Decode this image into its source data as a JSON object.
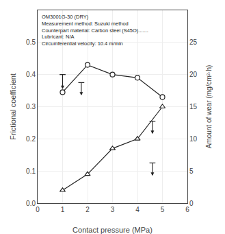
{
  "chart_data": {
    "type": "line",
    "annotation": [
      "OM3001G-30 (DRY)",
      "Measurement method: Suzuki method",
      "Counterpart material: Carbon steel (S45O).......",
      "Lubricant: N/A",
      "Circumferential velocity: 10.4 m/min"
    ],
    "x_label": "Contact pressure (MPa)",
    "y_label": "Frictional coefficient",
    "y2_label": "Amount of wear (mg/cm²·h)",
    "series": [
      {
        "x": [
          1,
          2,
          3,
          4,
          5
        ],
        "values": [
          0.345,
          0.43,
          0.4,
          0.39,
          0.33
        ],
        "color": "#222222",
        "marker": "circle"
      },
      {
        "x": [
          1,
          2,
          3,
          4,
          5
        ],
        "values": [
          2,
          4.5,
          8.5,
          10,
          15
        ],
        "color": "#222222",
        "marker": "triangle",
        "axis": "y2"
      }
    ],
    "xlim": [
      0,
      6
    ],
    "xticks": [
      0,
      1,
      2,
      3,
      4,
      5,
      6
    ],
    "ylim": [
      0,
      0.6
    ],
    "yticks": [
      {
        "value": 0,
        "label": "0.0"
      },
      0.1,
      0.2,
      0.3,
      0.4,
      0.5
    ],
    "y2lim": [
      0,
      30
    ],
    "y2ticks": [
      0,
      5,
      10,
      15,
      20,
      25
    ],
    "grid": true,
    "indicators": [
      {
        "x": 1.0,
        "y": 0.4,
        "dy": 0.045,
        "color": "#222222"
      },
      {
        "x": 1.75,
        "y": 0.375,
        "dy": 0.04,
        "color": "#222222"
      },
      {
        "x": 4.6,
        "y": 0.255,
        "dy": 0.04,
        "color": "#222222"
      },
      {
        "x": 4.6,
        "y": 0.125,
        "dy": 0.04,
        "color": "#222222"
      }
    ]
  }
}
